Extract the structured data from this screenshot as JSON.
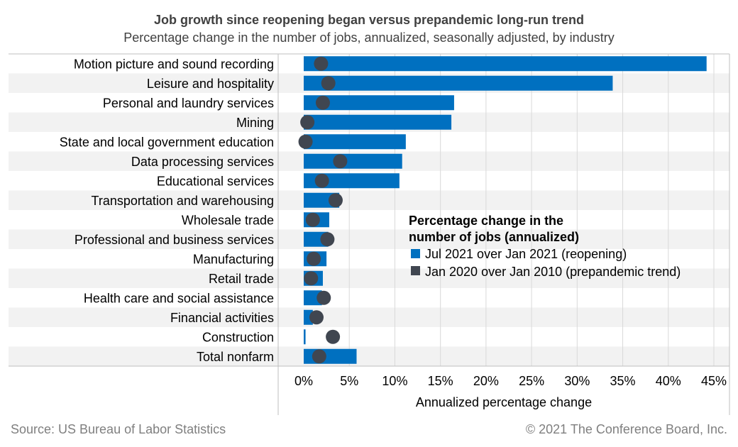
{
  "source": "Source: US Bureau of Labor Statistics",
  "copyright": "© 2021 The Conference Board, Inc.",
  "colors": {
    "bar": "#0070C0",
    "dot": "#404650",
    "stripe": "#F2F2F2",
    "grid": "#D9D9D9"
  },
  "chart_data": {
    "type": "bar",
    "orientation": "horizontal",
    "title": "Job growth since reopening began versus prepandemic long-run trend",
    "subtitle": "Percentage change in the number of jobs, annualized, seasonally adjusted, by industry",
    "xlabel": "Annualized percentage change",
    "xlim": [
      0,
      45
    ],
    "xticks": [
      "0%",
      "5%",
      "10%",
      "15%",
      "20%",
      "25%",
      "30%",
      "35%",
      "40%",
      "45%"
    ],
    "grid": true,
    "categories": [
      "Motion picture and sound recording",
      "Leisure and hospitality",
      "Personal and laundry services",
      "Mining",
      "State and local government education",
      "Data processing services",
      "Educational services",
      "Transportation and warehousing",
      "Wholesale trade",
      "Professional and business services",
      "Manufacturing",
      "Retail trade",
      "Health care and social assistance",
      "Financial activities",
      "Construction",
      "Total nonfarm"
    ],
    "series": [
      {
        "name": "Jul 2021 over Jan 2021 (reopening)",
        "type": "bar",
        "values": [
          44.2,
          33.9,
          16.5,
          16.2,
          11.2,
          10.8,
          10.5,
          3.9,
          2.8,
          2.7,
          2.5,
          2.1,
          2.0,
          1.0,
          0.2,
          5.8
        ]
      },
      {
        "name": "Jan 2020 over Jan 2010 (prepandemic trend)",
        "type": "dot",
        "values": [
          1.9,
          2.7,
          2.1,
          0.4,
          0.2,
          4.0,
          2.0,
          3.5,
          1.0,
          2.6,
          1.1,
          0.8,
          2.2,
          1.4,
          3.2,
          1.7
        ]
      }
    ],
    "legend": {
      "title_line1": "Percentage change in the",
      "title_line2": "number of jobs (annualized)",
      "placement": "right-middle"
    }
  }
}
